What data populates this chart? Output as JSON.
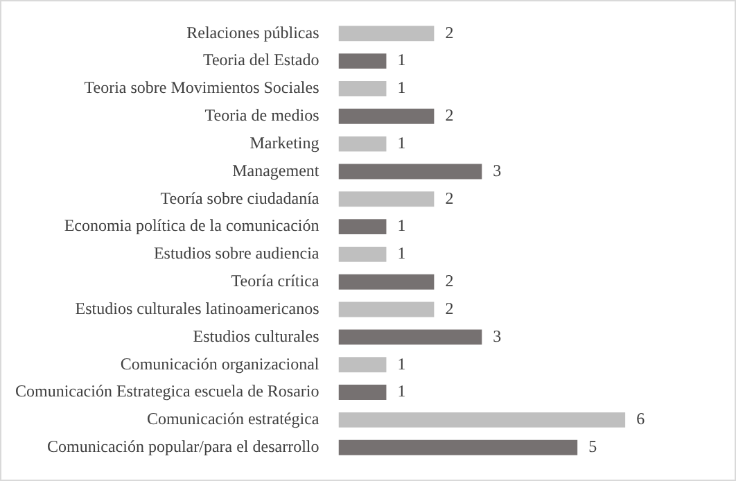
{
  "chart_data": {
    "type": "bar",
    "orientation": "horizontal",
    "data_labels": true,
    "categories": [
      "Relaciones públicas",
      "Teoria del Estado",
      "Teoria sobre Movimientos Sociales",
      "Teoria de medios",
      "Marketing",
      "Management",
      "Teoría sobre ciudadanía",
      "Economia política de la comunicación",
      "Estudios sobre audiencia",
      "Teoría crítica",
      "Estudios culturales latinoamericanos",
      "Estudios culturales",
      "Comunicación organizacional",
      "Comunicación Estrategica escuela de Rosario",
      "Comunicación estratégica",
      "Comunicación popular/para el desarrollo"
    ],
    "values": [
      2,
      1,
      1,
      2,
      1,
      3,
      2,
      1,
      1,
      2,
      2,
      3,
      1,
      1,
      6,
      5
    ],
    "colors": [
      "#bfbfbf",
      "#767171",
      "#bfbfbf",
      "#767171",
      "#bfbfbf",
      "#767171",
      "#bfbfbf",
      "#767171",
      "#bfbfbf",
      "#767171",
      "#bfbfbf",
      "#767171",
      "#bfbfbf",
      "#767171",
      "#bfbfbf",
      "#767171"
    ]
  }
}
